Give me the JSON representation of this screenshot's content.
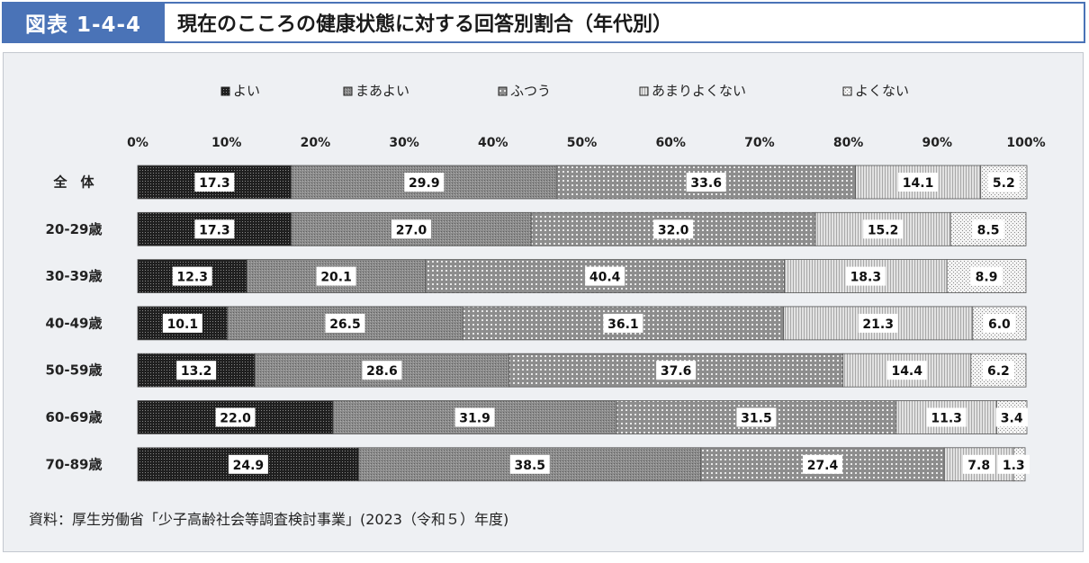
{
  "header": {
    "figure_label": "図表 1-4-4",
    "title": "現在のこころの健康状態に対する回答別割合（年代別）"
  },
  "source_note": "資料：厚生労働省「少子高齢社会等調査検討事業」(2023（令和５）年度)",
  "chart_data": {
    "type": "bar",
    "orientation": "horizontal",
    "stacked": "percent",
    "categories": [
      "全　体",
      "20-29歳",
      "30-39歳",
      "40-49歳",
      "50-59歳",
      "60-69歳",
      "70-89歳"
    ],
    "series": [
      {
        "name": "よい",
        "values": [
          17.3,
          17.3,
          12.3,
          10.1,
          13.2,
          22.0,
          24.9
        ]
      },
      {
        "name": "まあよい",
        "values": [
          29.9,
          27.0,
          20.1,
          26.5,
          28.6,
          31.9,
          38.5
        ]
      },
      {
        "name": "ふつう",
        "values": [
          33.6,
          32.0,
          40.4,
          36.1,
          37.6,
          31.5,
          27.4
        ]
      },
      {
        "name": "あまりよくない",
        "values": [
          14.1,
          15.2,
          18.3,
          21.3,
          14.4,
          11.3,
          7.8
        ]
      },
      {
        "name": "よくない",
        "values": [
          5.2,
          8.5,
          8.9,
          6.0,
          6.2,
          3.4,
          1.3
        ]
      }
    ],
    "xlim": [
      0,
      100
    ],
    "x_ticks": [
      "0%",
      "10%",
      "20%",
      "30%",
      "40%",
      "50%",
      "60%",
      "70%",
      "80%",
      "90%",
      "100%"
    ],
    "legend_position": "top",
    "data_labels": true
  }
}
